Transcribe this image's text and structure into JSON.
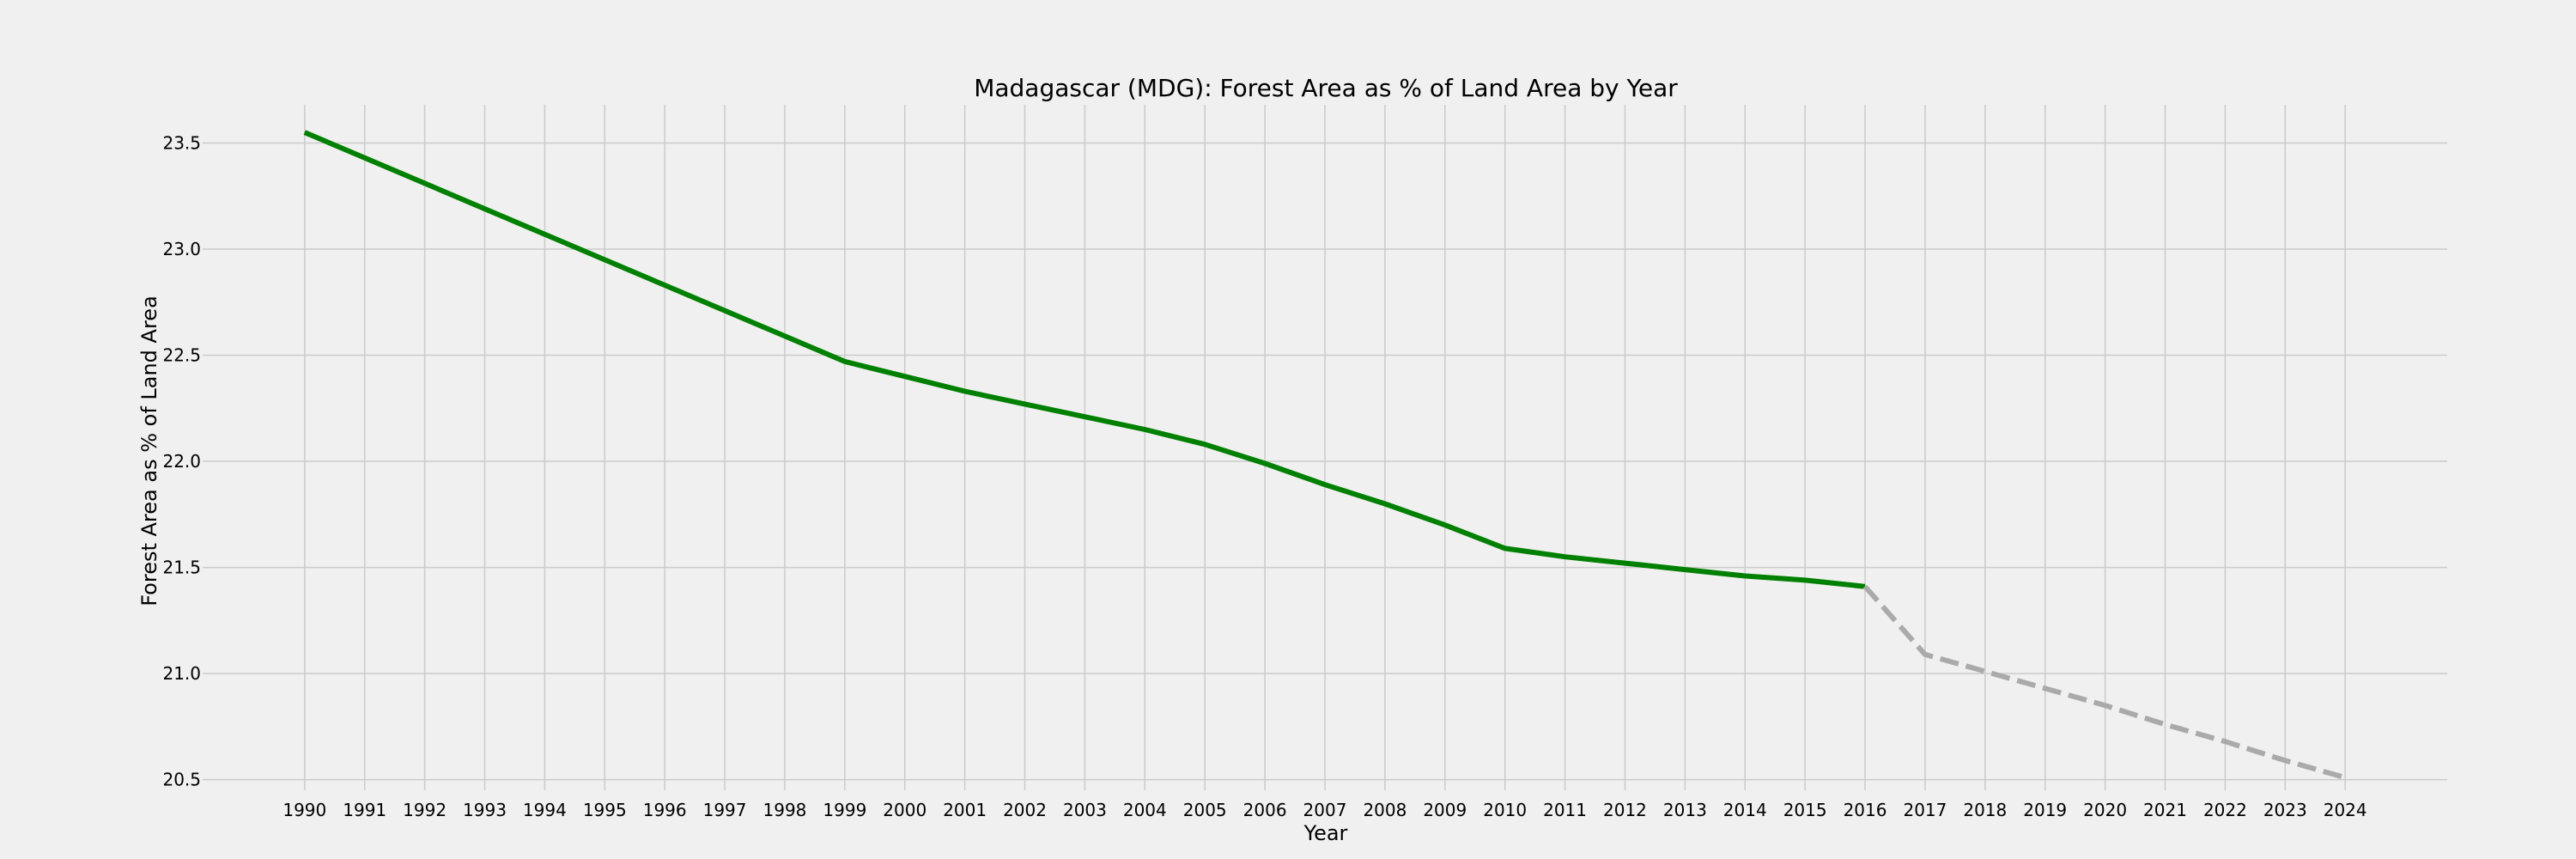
{
  "chart_data": {
    "type": "line",
    "title": "Madagascar (MDG): Forest Area as % of Land Area by Year",
    "xlabel": "Year",
    "ylabel": "Forest Area as % of Land Area",
    "x": [
      1990,
      1991,
      1992,
      1993,
      1994,
      1995,
      1996,
      1997,
      1998,
      1999,
      2000,
      2001,
      2002,
      2003,
      2004,
      2005,
      2006,
      2007,
      2008,
      2009,
      2010,
      2011,
      2012,
      2013,
      2014,
      2015,
      2016,
      2017,
      2018,
      2019,
      2020,
      2021,
      2022,
      2023,
      2024
    ],
    "x_tick_labels": [
      "1990",
      "1991",
      "1992",
      "1993",
      "1994",
      "1995",
      "1996",
      "1997",
      "1998",
      "1999",
      "2000",
      "2001",
      "2002",
      "2003",
      "2004",
      "2005",
      "2006",
      "2007",
      "2008",
      "2009",
      "2010",
      "2011",
      "2012",
      "2013",
      "2014",
      "2015",
      "2016",
      "2017",
      "2018",
      "2019",
      "2020",
      "2021",
      "2022",
      "2023",
      "2024"
    ],
    "y_ticks": [
      20.5,
      21.0,
      21.5,
      22.0,
      22.5,
      23.0,
      23.5
    ],
    "y_tick_labels": [
      "20.5",
      "21.0",
      "21.5",
      "22.0",
      "22.5",
      "23.0",
      "23.5"
    ],
    "xlim": [
      1988.3,
      2025.7
    ],
    "ylim": [
      20.45,
      23.68
    ],
    "grid": true,
    "series": [
      {
        "color": "#008000",
        "style": "solid",
        "x": [
          1990,
          1991,
          1992,
          1993,
          1994,
          1995,
          1996,
          1997,
          1998,
          1999,
          2000,
          2001,
          2002,
          2003,
          2004,
          2005,
          2006,
          2007,
          2008,
          2009,
          2010,
          2011,
          2012,
          2013,
          2014,
          2015,
          2016
        ],
        "y": [
          23.55,
          23.43,
          23.31,
          23.19,
          23.07,
          22.95,
          22.83,
          22.71,
          22.59,
          22.47,
          22.4,
          22.33,
          22.27,
          22.21,
          22.15,
          22.08,
          21.99,
          21.89,
          21.8,
          21.7,
          21.59,
          21.55,
          21.52,
          21.49,
          21.46,
          21.44,
          21.41
        ]
      },
      {
        "color": "#aaaaaa",
        "style": "dashed",
        "x": [
          2016,
          2017,
          2018,
          2019,
          2020,
          2021,
          2022,
          2023,
          2024
        ],
        "y": [
          21.41,
          21.09,
          21.01,
          20.93,
          20.85,
          20.76,
          20.68,
          20.59,
          20.51
        ]
      }
    ]
  }
}
